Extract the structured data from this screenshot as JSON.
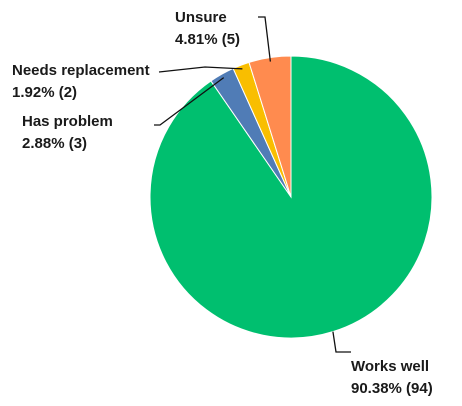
{
  "chart_data": {
    "type": "pie",
    "title": "",
    "slices": [
      {
        "name": "Works well",
        "percent": 90.38,
        "count": 94,
        "percent_label": "90.38% (94)",
        "color": "#00bf6f"
      },
      {
        "name": "Has problem",
        "percent": 2.88,
        "count": 3,
        "percent_label": "2.88% (3)",
        "color": "#507cb6"
      },
      {
        "name": "Needs replacement",
        "percent": 1.92,
        "count": 2,
        "percent_label": "1.92% (2)",
        "color": "#f9be00"
      },
      {
        "name": "Unsure",
        "percent": 4.81,
        "count": 5,
        "percent_label": "4.81% (5)",
        "color": "#ff8b4f"
      }
    ],
    "start": "12 o'clock",
    "direction": "clockwise",
    "legend": "none"
  }
}
